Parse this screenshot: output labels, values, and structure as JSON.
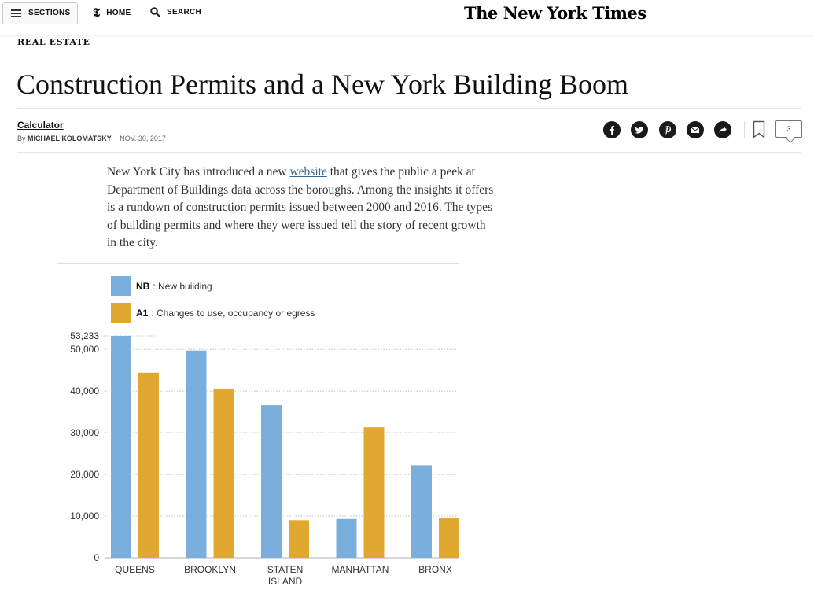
{
  "nav": {
    "sections_label": "SECTIONS",
    "home_label": "HOME",
    "search_label": "SEARCH",
    "logo": "The New York Times"
  },
  "article": {
    "kicker": "REAL ESTATE",
    "headline": "Construction Permits and a New York Building Boom",
    "column": "Calculator",
    "byline_prefix": "By",
    "author": "MICHAEL KOLOMATSKY",
    "date": "NOV. 30, 2017",
    "comment_count": "3",
    "intro_before_link": "New York City has introduced a new ",
    "intro_link": "website",
    "intro_after_link": " that gives the public a peek at Department of Buildings data across the boroughs. Among the insights it offers is a rundown of construction permits issued between 2000 and 2016. The types of building permits and where they were issued tell the story of recent growth in the city."
  },
  "share_icons": [
    "facebook-icon",
    "twitter-icon",
    "pinterest-icon",
    "email-icon",
    "share-arrow-icon"
  ],
  "colors": {
    "nb": "#7aafdd",
    "a1": "#e1a831",
    "link": "#326891"
  },
  "chart_data": {
    "type": "bar",
    "categories": [
      "QUEENS",
      "BROOKLYN",
      "STATEN ISLAND",
      "MANHATTAN",
      "BRONX"
    ],
    "category_lines": [
      [
        "QUEENS"
      ],
      [
        "BROOKLYN"
      ],
      [
        "STATEN",
        "ISLAND"
      ],
      [
        "MANHATTAN"
      ],
      [
        "BRONX"
      ]
    ],
    "series": [
      {
        "name": "NB",
        "description": "New building",
        "color": "#7aafdd",
        "values": [
          53233,
          49700,
          36600,
          9300,
          22200
        ]
      },
      {
        "name": "A1",
        "description": "Changes to use, occupancy or egress",
        "color": "#e1a831",
        "values": [
          44400,
          40400,
          9000,
          31300,
          9600
        ]
      }
    ],
    "yticks": [
      0,
      10000,
      20000,
      30000,
      40000,
      50000
    ],
    "ytick_labels": [
      "0",
      "10,000",
      "20,000",
      "30,000",
      "40,000",
      "50,000"
    ],
    "max_label": "53,233",
    "ylim": [
      0,
      53233
    ],
    "grid": true,
    "legend_position": "top-left"
  }
}
